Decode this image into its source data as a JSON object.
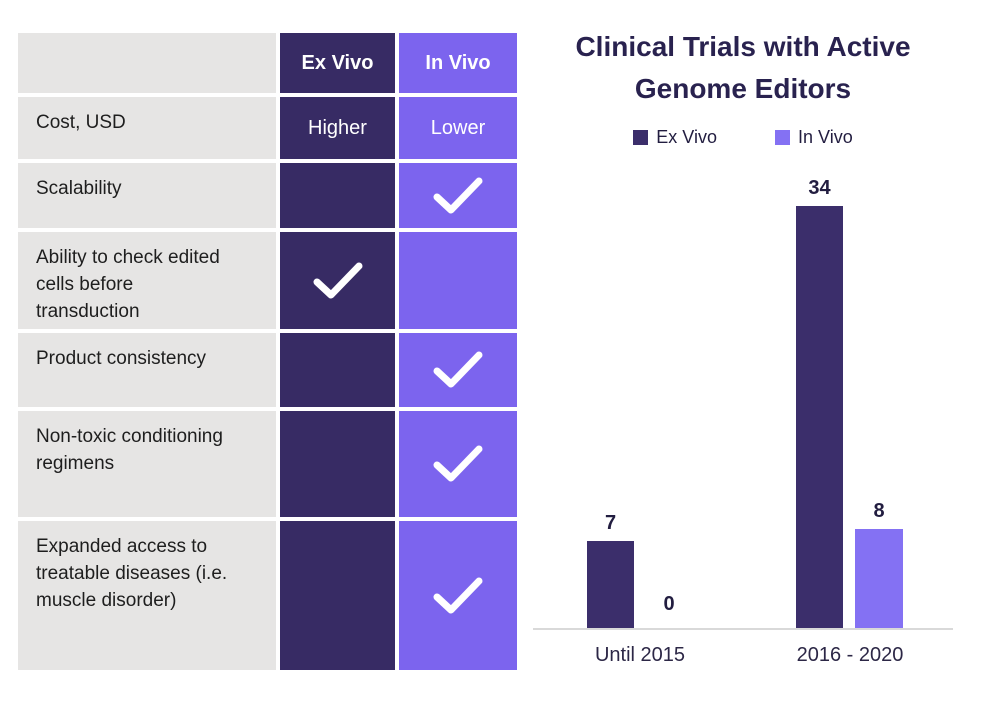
{
  "colors": {
    "table_dark_purple": "#372b64",
    "table_light_purple": "#7c64ee",
    "bar_dark_purple": "#3b2e6b",
    "bar_light_purple": "#8471f3",
    "row_gray": "#e6e5e4",
    "title_navy": "#29224f",
    "axis_gray": "#d9d9d9",
    "check_white": "#ffffff"
  },
  "table": {
    "header": {
      "col0": "",
      "ex_vivo": "Ex Vivo",
      "in_vivo": "In Vivo"
    },
    "rows": [
      {
        "label": "Cost, USD",
        "ex_vivo": "Higher",
        "in_vivo": "Lower",
        "ex_vivo_check": false,
        "in_vivo_check": false
      },
      {
        "label": "Scalability",
        "ex_vivo": "",
        "in_vivo": "",
        "ex_vivo_check": false,
        "in_vivo_check": true
      },
      {
        "label": "Ability to check edited cells before transduction",
        "ex_vivo": "",
        "in_vivo": "",
        "ex_vivo_check": true,
        "in_vivo_check": false
      },
      {
        "label": "Product consistency",
        "ex_vivo": "",
        "in_vivo": "",
        "ex_vivo_check": false,
        "in_vivo_check": true
      },
      {
        "label": "Non-toxic conditioning regimens",
        "ex_vivo": "",
        "in_vivo": "",
        "ex_vivo_check": false,
        "in_vivo_check": true
      },
      {
        "label": "Expanded access to treatable diseases (i.e. muscle disorder)",
        "ex_vivo": "",
        "in_vivo": "",
        "ex_vivo_check": false,
        "in_vivo_check": true
      }
    ]
  },
  "chart": {
    "title_line1": "Clinical Trials with Active",
    "title_line2": "Genome Editors"
  },
  "chart_data": {
    "type": "bar",
    "title": "Clinical Trials with Active Genome Editors",
    "categories": [
      "Until 2015",
      "2016 - 2020"
    ],
    "series": [
      {
        "name": "Ex Vivo",
        "values": [
          7,
          34
        ],
        "color": "#3b2e6b"
      },
      {
        "name": "In Vivo",
        "values": [
          0,
          8
        ],
        "color": "#8471f3"
      }
    ],
    "ylim": [
      0,
      36
    ],
    "grid": false,
    "legend_position": "top",
    "data_labels": true
  }
}
